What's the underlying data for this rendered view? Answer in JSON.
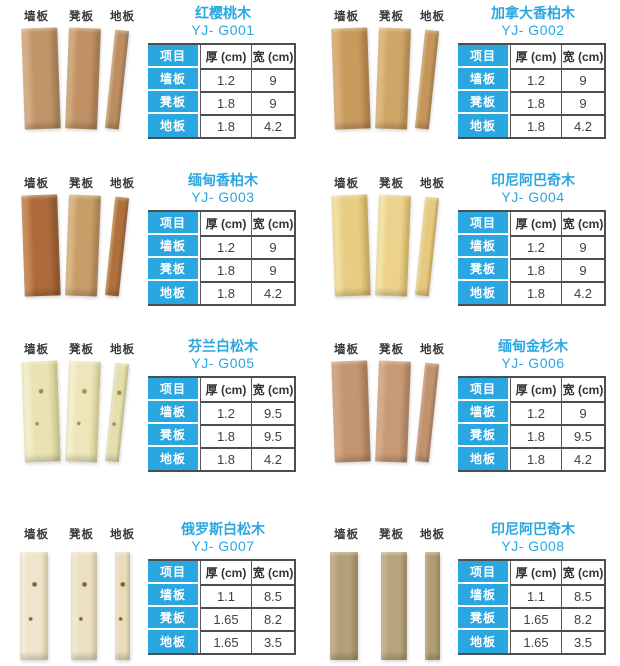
{
  "shared": {
    "board_labels": [
      "墙板",
      "凳板",
      "地板"
    ],
    "table_headers": [
      "项目",
      "厚 (cm)",
      "宽 (cm)"
    ]
  },
  "colors": {
    "accent_blue": "#2aa7e0",
    "table_border_dark": "#4d4d4d",
    "table_border_mid": "#58595b",
    "text_dark": "#3a3a3a",
    "value_text": "#414042",
    "page_bg": "#ffffff"
  },
  "products": [
    {
      "name": "红樱桃木",
      "code": "YJ- G001",
      "rows": [
        [
          "墙板",
          "1.2",
          "9"
        ],
        [
          "凳板",
          "1.8",
          "9"
        ],
        [
          "地板",
          "1.8",
          "4.2"
        ]
      ],
      "plank_colors": [
        [
          "#d7b189",
          "#c1956a",
          "#9c744c"
        ],
        [
          "#d4ac80",
          "#c09165",
          "#9a7048"
        ],
        [
          "#d2aa7e",
          "#bc8d60",
          "#946b44"
        ]
      ]
    },
    {
      "name": "加拿大香柏木",
      "code": "YJ- G002",
      "rows": [
        [
          "墙板",
          "1.2",
          "9"
        ],
        [
          "凳板",
          "1.8",
          "9"
        ],
        [
          "地板",
          "1.8",
          "4.2"
        ]
      ],
      "plank_colors": [
        [
          "#dcb27c",
          "#c99a5e",
          "#a3763f"
        ],
        [
          "#e2bc86",
          "#d0a668",
          "#ab8146"
        ],
        [
          "#d9ae74",
          "#c5955a",
          "#9e713c"
        ]
      ]
    },
    {
      "name": "缅甸香柏木",
      "code": "YJ- G003",
      "rows": [
        [
          "墙板",
          "1.2",
          "9"
        ],
        [
          "凳板",
          "1.8",
          "9"
        ],
        [
          "地板",
          "1.8",
          "4.2"
        ]
      ],
      "plank_colors": [
        [
          "#c98e5c",
          "#ad6a3c",
          "#864f27"
        ],
        [
          "#dcb988",
          "#c89e68",
          "#a27a4a"
        ],
        [
          "#ca9058",
          "#b0703e",
          "#88532a"
        ]
      ]
    },
    {
      "name": "印尼阿巴奇木",
      "code": "YJ- G004",
      "rows": [
        [
          "墙板",
          "1.2",
          "9"
        ],
        [
          "凳板",
          "1.8",
          "9"
        ],
        [
          "地板",
          "1.8",
          "4.2"
        ]
      ],
      "plank_colors": [
        [
          "#f4e2a4",
          "#e9cd84",
          "#c8a558"
        ],
        [
          "#f6e6ac",
          "#ecd28c",
          "#ccaa5e"
        ],
        [
          "#f2de9c",
          "#e6c97e",
          "#c4a054"
        ]
      ]
    },
    {
      "name": "芬兰白松木",
      "code": "YJ- G005",
      "rows": [
        [
          "墙板",
          "1.2",
          "9.5"
        ],
        [
          "凳板",
          "1.8",
          "9.5"
        ],
        [
          "地板",
          "1.8",
          "4.2"
        ]
      ],
      "plank_colors": [
        [
          "#f4f0cc",
          "#e9e3b4",
          "#c6c084"
        ],
        [
          "#f6f2d2",
          "#ece6ba",
          "#cac488"
        ],
        [
          "#f1edc6",
          "#e5dfae",
          "#c0ba7e"
        ]
      ],
      "knots": true,
      "knot_color": "#9a8a54"
    },
    {
      "name": "缅甸金杉木",
      "code": "YJ- G006",
      "rows": [
        [
          "墙板",
          "1.2",
          "9"
        ],
        [
          "凳板",
          "1.8",
          "9.5"
        ],
        [
          "地板",
          "1.8",
          "4.2"
        ]
      ],
      "plank_colors": [
        [
          "#d4a988",
          "#c39570",
          "#9f7352"
        ],
        [
          "#d8ae8e",
          "#c79a76",
          "#a37756"
        ],
        [
          "#d2a686",
          "#c0926e",
          "#9c7050"
        ]
      ]
    },
    {
      "name": "俄罗斯白松木",
      "code": "YJ- G007",
      "rows": [
        [
          "墙板",
          "1.1",
          "8.5"
        ],
        [
          "凳板",
          "1.65",
          "8.2"
        ],
        [
          "地板",
          "1.65",
          "3.5"
        ]
      ],
      "plank_colors": [
        [
          "#f6efdc",
          "#efe5cc",
          "#d6c8a2"
        ],
        [
          "#f4ecd6",
          "#ece0c4",
          "#d2c39c"
        ],
        [
          "#f2eace",
          "#e9dcba",
          "#cebf96"
        ]
      ],
      "knots": true,
      "knot_color": "#7c5c36"
    },
    {
      "name": "印尼阿巴奇木",
      "code": "YJ- G008",
      "rows": [
        [
          "墙板",
          "1.1",
          "8.5"
        ],
        [
          "凳板",
          "1.65",
          "8.2"
        ],
        [
          "地板",
          "1.65",
          "3.5"
        ]
      ],
      "plank_colors": [
        [
          "#c4b28a",
          "#b3a078",
          "#948158"
        ],
        [
          "#c8b68e",
          "#b7a47c",
          "#98855c"
        ],
        [
          "#c2b086",
          "#b09d74",
          "#917e55"
        ]
      ]
    }
  ]
}
